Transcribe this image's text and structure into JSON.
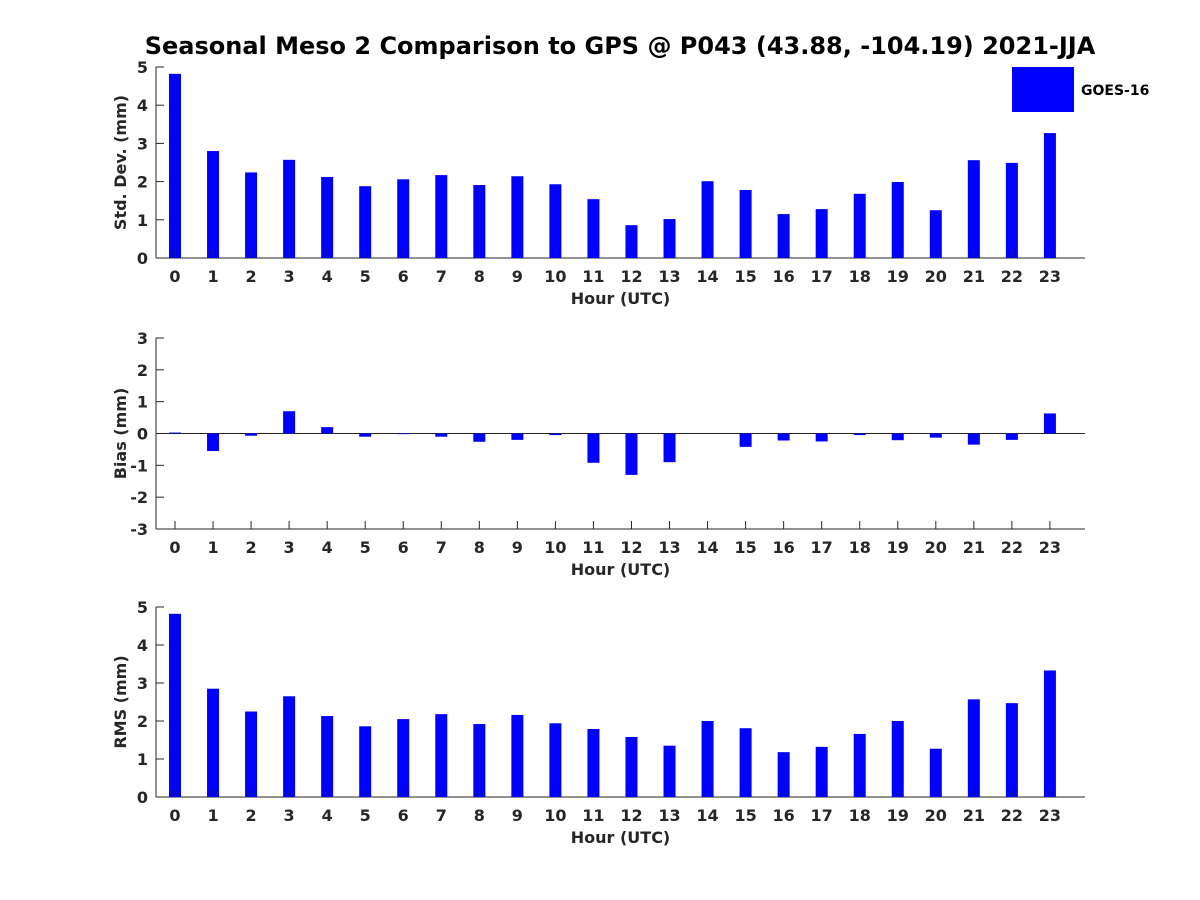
{
  "colors": {
    "bar": "#0000ff",
    "axis": "#262626",
    "background": "#ffffff"
  },
  "figure_title": "Seasonal Meso 2 Comparison to GPS @ P043 (43.88, -104.19) 2021-JJA",
  "legend": {
    "label": "GOES-16",
    "placement": "top-right"
  },
  "chart_data": [
    {
      "type": "bar",
      "name": "std-dev",
      "xlabel": "Hour (UTC)",
      "ylabel": "Std. Dev. (mm)",
      "ylim": [
        0,
        5
      ],
      "yticks": [
        0,
        1,
        2,
        3,
        4,
        5
      ],
      "categories": [
        "0",
        "1",
        "2",
        "3",
        "4",
        "5",
        "6",
        "7",
        "8",
        "9",
        "10",
        "11",
        "12",
        "13",
        "14",
        "15",
        "16",
        "17",
        "18",
        "19",
        "20",
        "21",
        "22",
        "23"
      ],
      "series": [
        {
          "name": "GOES-16",
          "values": [
            4.82,
            2.8,
            2.24,
            2.57,
            2.12,
            1.88,
            2.06,
            2.17,
            1.91,
            2.14,
            1.93,
            1.54,
            0.86,
            1.02,
            2.01,
            1.78,
            1.15,
            1.28,
            1.68,
            1.99,
            1.25,
            2.56,
            2.49,
            3.27
          ]
        }
      ]
    },
    {
      "type": "bar",
      "name": "bias",
      "xlabel": "Hour (UTC)",
      "ylabel": "Bias (mm)",
      "ylim": [
        -3,
        3
      ],
      "yticks": [
        -3,
        -2,
        -1,
        0,
        1,
        2,
        3
      ],
      "categories": [
        "0",
        "1",
        "2",
        "3",
        "4",
        "5",
        "6",
        "7",
        "8",
        "9",
        "10",
        "11",
        "12",
        "13",
        "14",
        "15",
        "16",
        "17",
        "18",
        "19",
        "20",
        "21",
        "22",
        "23"
      ],
      "series": [
        {
          "name": "GOES-16",
          "values": [
            0.03,
            -0.55,
            -0.07,
            0.7,
            0.2,
            -0.1,
            -0.02,
            -0.1,
            -0.26,
            -0.2,
            -0.05,
            -0.92,
            -1.3,
            -0.9,
            0.0,
            -0.42,
            -0.22,
            -0.25,
            -0.05,
            -0.21,
            -0.13,
            -0.35,
            -0.2,
            0.63
          ]
        }
      ]
    },
    {
      "type": "bar",
      "name": "rms",
      "xlabel": "Hour (UTC)",
      "ylabel": "RMS (mm)",
      "ylim": [
        0,
        5
      ],
      "yticks": [
        0,
        1,
        2,
        3,
        4,
        5
      ],
      "categories": [
        "0",
        "1",
        "2",
        "3",
        "4",
        "5",
        "6",
        "7",
        "8",
        "9",
        "10",
        "11",
        "12",
        "13",
        "14",
        "15",
        "16",
        "17",
        "18",
        "19",
        "20",
        "21",
        "22",
        "23"
      ],
      "series": [
        {
          "name": "GOES-16",
          "values": [
            4.82,
            2.85,
            2.25,
            2.65,
            2.13,
            1.86,
            2.05,
            2.18,
            1.92,
            2.16,
            1.94,
            1.79,
            1.58,
            1.35,
            2.0,
            1.81,
            1.18,
            1.32,
            1.66,
            2.0,
            1.27,
            2.57,
            2.47,
            3.33
          ]
        }
      ]
    }
  ]
}
